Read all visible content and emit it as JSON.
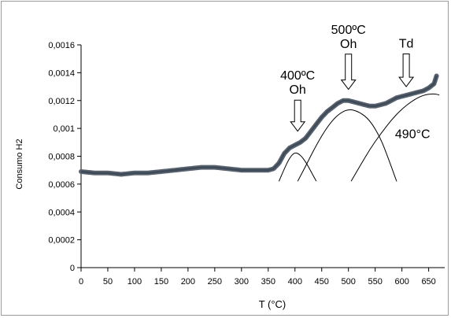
{
  "chart_data": {
    "type": "line",
    "title": "",
    "xlabel": "T (°C)",
    "ylabel": "Consumo H2",
    "xlim": [
      0,
      680
    ],
    "ylim": [
      0,
      0.0016
    ],
    "x_ticks": [
      "0",
      "50",
      "100",
      "150",
      "200",
      "250",
      "300",
      "350",
      "400",
      "450",
      "500",
      "550",
      "600",
      "650"
    ],
    "x_tick_values": [
      0,
      50,
      100,
      150,
      200,
      250,
      300,
      350,
      400,
      450,
      500,
      550,
      600,
      650
    ],
    "y_ticks": [
      "0",
      "0,0002",
      "0,0004",
      "0,0006",
      "0,0008",
      "0,001",
      "0,0012",
      "0,0014",
      "0,0016"
    ],
    "y_tick_values": [
      0,
      0.0002,
      0.0004,
      0.0006,
      0.0008,
      0.001,
      0.0012,
      0.0014,
      0.0016
    ],
    "grid": false,
    "legend": "none",
    "series": [
      {
        "role": "measured",
        "color": "#5a6470",
        "x": [
          0,
          25,
          50,
          75,
          100,
          125,
          150,
          175,
          200,
          225,
          250,
          275,
          300,
          325,
          350,
          360,
          370,
          380,
          390,
          400,
          410,
          420,
          430,
          440,
          450,
          460,
          470,
          480,
          490,
          500,
          510,
          520,
          530,
          540,
          550,
          560,
          570,
          580,
          590,
          600,
          610,
          620,
          630,
          640,
          650,
          660,
          665
        ],
        "y": [
          0.00069,
          0.00068,
          0.00068,
          0.00067,
          0.00068,
          0.00068,
          0.00069,
          0.0007,
          0.00071,
          0.00072,
          0.00072,
          0.00071,
          0.0007,
          0.0007,
          0.0007,
          0.00071,
          0.00075,
          0.00082,
          0.00086,
          0.00088,
          0.0009,
          0.00093,
          0.00098,
          0.00103,
          0.00108,
          0.00112,
          0.00115,
          0.00118,
          0.0012,
          0.0012,
          0.00119,
          0.00118,
          0.00117,
          0.00116,
          0.00116,
          0.00117,
          0.00118,
          0.0012,
          0.00122,
          0.00123,
          0.00124,
          0.00125,
          0.00126,
          0.00127,
          0.00129,
          0.00132,
          0.00138
        ]
      },
      {
        "role": "fit",
        "color": "#000000",
        "x": [
          370,
          380,
          390,
          400,
          410,
          420,
          430,
          440
        ],
        "y": [
          0.00062,
          0.00071,
          0.00079,
          0.00083,
          0.00081,
          0.00076,
          0.00069,
          0.00062
        ]
      },
      {
        "role": "fit",
        "color": "#000000",
        "x": [
          405,
          420,
          440,
          460,
          480,
          500,
          520,
          540,
          560,
          575,
          590
        ],
        "y": [
          0.00062,
          0.00073,
          0.00088,
          0.00101,
          0.0011,
          0.00114,
          0.00112,
          0.00106,
          0.00093,
          0.00078,
          0.00062
        ]
      },
      {
        "role": "fit",
        "color": "#000000",
        "x": [
          505,
          520,
          540,
          560,
          580,
          600,
          620,
          640,
          660,
          670
        ],
        "y": [
          0.00062,
          0.00072,
          0.00085,
          0.00096,
          0.00106,
          0.00114,
          0.0012,
          0.00124,
          0.00125,
          0.00124
        ]
      }
    ],
    "annotations": [
      {
        "lines": [
          "400ºC",
          "Oh"
        ],
        "x": 405,
        "y": 0.00135,
        "arrow_to_y": 0.00098
      },
      {
        "lines": [
          "500ºC",
          "Oh"
        ],
        "x": 500,
        "y": 0.00168,
        "arrow_to_y": 0.00128
      },
      {
        "lines": [
          "Td"
        ],
        "x": 608,
        "y": 0.00158,
        "arrow_to_y": 0.0013
      },
      {
        "lines": [
          "490°C"
        ],
        "x": 620,
        "y": 0.00093,
        "arrow_to_y": null
      }
    ]
  }
}
